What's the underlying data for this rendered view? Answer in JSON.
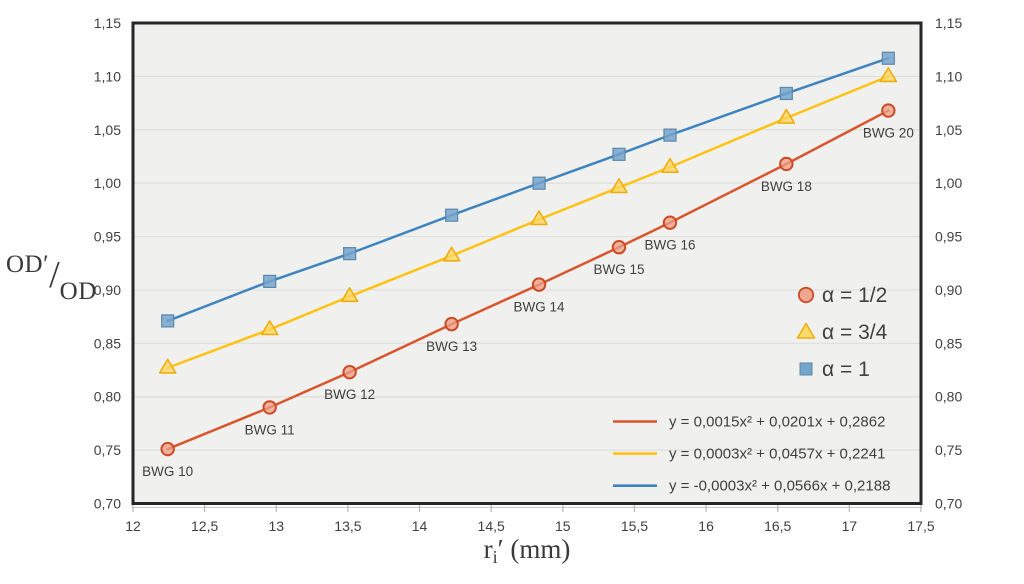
{
  "chart_data": {
    "type": "line",
    "title": "",
    "grid": "horizontal",
    "legend_position": "inside-right",
    "x_axis": {
      "title": "rᵢ′ (mm)",
      "title_parts": {
        "base": "r",
        "sub": "i",
        "rest": "′ (mm)"
      },
      "min": 12,
      "max": 17.5,
      "ticks": [
        {
          "v": 12,
          "label": "12"
        },
        {
          "v": 12.5,
          "label": "12,5"
        },
        {
          "v": 13,
          "label": "13"
        },
        {
          "v": 13.5,
          "label": "13,5"
        },
        {
          "v": 14,
          "label": "14"
        },
        {
          "v": 14.5,
          "label": "14,5"
        },
        {
          "v": 15,
          "label": "15"
        },
        {
          "v": 15.5,
          "label": "15,5"
        },
        {
          "v": 16,
          "label": "16"
        },
        {
          "v": 16.5,
          "label": "16,5"
        },
        {
          "v": 17,
          "label": "17"
        },
        {
          "v": 17.5,
          "label": "17,5"
        }
      ]
    },
    "y_axis": {
      "title": "OD′/OD",
      "title_parts": {
        "numerator": "OD′",
        "slash": "/",
        "denominator": "OD"
      },
      "min": 0.7,
      "max": 1.15,
      "ticks": [
        {
          "v": 0.7,
          "label": "0,70"
        },
        {
          "v": 0.75,
          "label": "0,75"
        },
        {
          "v": 0.8,
          "label": "0,80"
        },
        {
          "v": 0.85,
          "label": "0,85"
        },
        {
          "v": 0.9,
          "label": "0,90"
        },
        {
          "v": 0.95,
          "label": "0,95"
        },
        {
          "v": 1.0,
          "label": "1,00"
        },
        {
          "v": 1.05,
          "label": "1,05"
        },
        {
          "v": 1.1,
          "label": "1,10"
        },
        {
          "v": 1.15,
          "label": "1,15"
        }
      ]
    },
    "x": [
      12.242,
      12.954,
      13.512,
      14.224,
      14.834,
      15.392,
      15.748,
      16.56,
      17.272
    ],
    "point_labels": [
      "BWG 10",
      "BWG 11",
      "BWG 12",
      "BWG 13",
      "BWG 14",
      "BWG 15",
      "BWG 16",
      "BWG 18",
      "BWG 20"
    ],
    "series": [
      {
        "name": "α = 1/2",
        "marker": "circle",
        "line_color": "#D9552B",
        "marker_fill": "#ED9D84",
        "marker_stroke": "#CC4B26",
        "values": [
          0.751,
          0.79,
          0.823,
          0.868,
          0.905,
          0.94,
          0.963,
          1.018,
          1.068
        ],
        "equation": "y = 0,0015x² + 0,0201x + 0,2862"
      },
      {
        "name": "α = 3/4",
        "marker": "triangle",
        "line_color": "#FFC212",
        "marker_fill": "#FFD65C",
        "marker_stroke": "#EFAD0C",
        "values": [
          0.827,
          0.863,
          0.894,
          0.932,
          0.966,
          0.996,
          1.015,
          1.061,
          1.1
        ],
        "equation": "y = 0,0003x² + 0,0457x + 0,2241"
      },
      {
        "name": "α = 1",
        "marker": "square",
        "line_color": "#3E85BF",
        "marker_fill": "#74A5CC",
        "marker_stroke": "#5D87A6",
        "values": [
          0.871,
          0.908,
          0.934,
          0.97,
          1.0,
          1.027,
          1.045,
          1.084,
          1.117
        ],
        "equation": "y = -0,0003x² + 0,0566x + 0,2188"
      }
    ],
    "style": {
      "plot_bg": "#F0F0EF",
      "gridline": "#DEDEDE",
      "border": "#262626",
      "axis_line": "#C9C9C9",
      "tick_mark": "#B5B5B5",
      "text": "#404040"
    }
  }
}
